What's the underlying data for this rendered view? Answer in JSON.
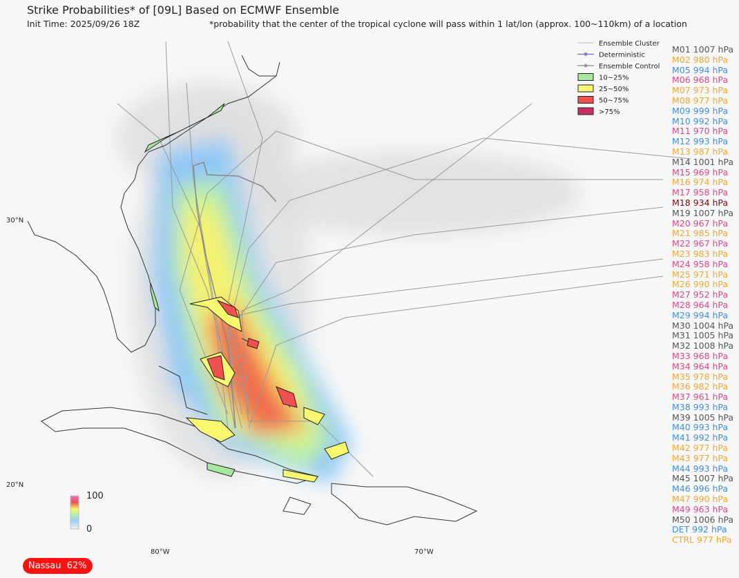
{
  "header": {
    "title": "Strike Probabilities* of [09L] Based on ECMWF Ensemble",
    "init_time": "Init Time: 2025/09/26 18Z",
    "footnote": "*probability that the center of the tropical cyclone will pass within 1 lat/lon (approx. 100~110km) of a location"
  },
  "legend": {
    "lines": [
      {
        "label": "Ensemble Cluster",
        "color": "#bbbbbb"
      },
      {
        "label": "Deterministic",
        "color": "#8080c0"
      },
      {
        "label": "Ensemble Control",
        "color": "#999999"
      }
    ],
    "bands": [
      {
        "label": "10~25%",
        "color": "#a8e8a0"
      },
      {
        "label": "25~50%",
        "color": "#f8f870"
      },
      {
        "label": "50~75%",
        "color": "#f05050"
      },
      {
        "label": ">75%",
        "color": "#c83060"
      }
    ]
  },
  "members": [
    {
      "label": "M01 1007 hPa",
      "color": "#555555"
    },
    {
      "label": "M02 980 hPa",
      "color": "#f5a623"
    },
    {
      "label": "M05 994 hPa",
      "color": "#3a8ee6"
    },
    {
      "label": "M06 968 hPa",
      "color": "#e83e8c"
    },
    {
      "label": "M07 973 hPa",
      "color": "#f5a623"
    },
    {
      "label": "M08 977 hPa",
      "color": "#f5a623"
    },
    {
      "label": "M09 999 hPa",
      "color": "#3a8ee6"
    },
    {
      "label": "M10 992 hPa",
      "color": "#3a8ee6"
    },
    {
      "label": "M11 970 hPa",
      "color": "#e83e8c"
    },
    {
      "label": "M12 993 hPa",
      "color": "#3a8ee6"
    },
    {
      "label": "M13 987 hPa",
      "color": "#f5a623"
    },
    {
      "label": "M14 1001 hPa",
      "color": "#555555"
    },
    {
      "label": "M15 969 hPa",
      "color": "#e83e8c"
    },
    {
      "label": "M16 974 hPa",
      "color": "#f5a623"
    },
    {
      "label": "M17 958 hPa",
      "color": "#e83e8c"
    },
    {
      "label": "M18 934 hPa",
      "color": "#8b0000"
    },
    {
      "label": "M19 1007 hPa",
      "color": "#555555"
    },
    {
      "label": "M20 967 hPa",
      "color": "#e83e8c"
    },
    {
      "label": "M21 985 hPa",
      "color": "#f5a623"
    },
    {
      "label": "M22 967 hPa",
      "color": "#e83e8c"
    },
    {
      "label": "M23 983 hPa",
      "color": "#f5a623"
    },
    {
      "label": "M24 958 hPa",
      "color": "#e83e8c"
    },
    {
      "label": "M25 971 hPa",
      "color": "#f5a623"
    },
    {
      "label": "M26 990 hPa",
      "color": "#f5a623"
    },
    {
      "label": "M27 952 hPa",
      "color": "#e83e8c"
    },
    {
      "label": "M28 964 hPa",
      "color": "#e83e8c"
    },
    {
      "label": "M29 994 hPa",
      "color": "#3a8ee6"
    },
    {
      "label": "M30 1004 hPa",
      "color": "#555555"
    },
    {
      "label": "M31 1005 hPa",
      "color": "#555555"
    },
    {
      "label": "M32 1008 hPa",
      "color": "#555555"
    },
    {
      "label": "M33 968 hPa",
      "color": "#e83e8c"
    },
    {
      "label": "M34 964 hPa",
      "color": "#e83e8c"
    },
    {
      "label": "M35 978 hPa",
      "color": "#f5a623"
    },
    {
      "label": "M36 982 hPa",
      "color": "#f5a623"
    },
    {
      "label": "M37 961 hPa",
      "color": "#e83e8c"
    },
    {
      "label": "M38 993 hPa",
      "color": "#3a8ee6"
    },
    {
      "label": "M39 1005 hPa",
      "color": "#555555"
    },
    {
      "label": "M40 993 hPa",
      "color": "#3a8ee6"
    },
    {
      "label": "M41 992 hPa",
      "color": "#3a8ee6"
    },
    {
      "label": "M42 977 hPa",
      "color": "#f5a623"
    },
    {
      "label": "M43 977 hPa",
      "color": "#f5a623"
    },
    {
      "label": "M44 993 hPa",
      "color": "#3a8ee6"
    },
    {
      "label": "M45 1007 hPa",
      "color": "#555555"
    },
    {
      "label": "M46 996 hPa",
      "color": "#3a8ee6"
    },
    {
      "label": "M47 990 hPa",
      "color": "#f5a623"
    },
    {
      "label": "M49 963 hPa",
      "color": "#e83e8c"
    },
    {
      "label": "M50 1006 hPa",
      "color": "#555555"
    },
    {
      "label": "DET 992 hPa",
      "color": "#3a8ee6"
    },
    {
      "label": "CTRL 977 hPa",
      "color": "#f5a623"
    }
  ],
  "axes": {
    "lat": [
      "30°N",
      "20°N"
    ],
    "lon": [
      "80°W",
      "70°W"
    ]
  },
  "colorbar": {
    "max": "100",
    "min": "0"
  },
  "badge": {
    "place": "Nassau",
    "prob": "62%"
  }
}
